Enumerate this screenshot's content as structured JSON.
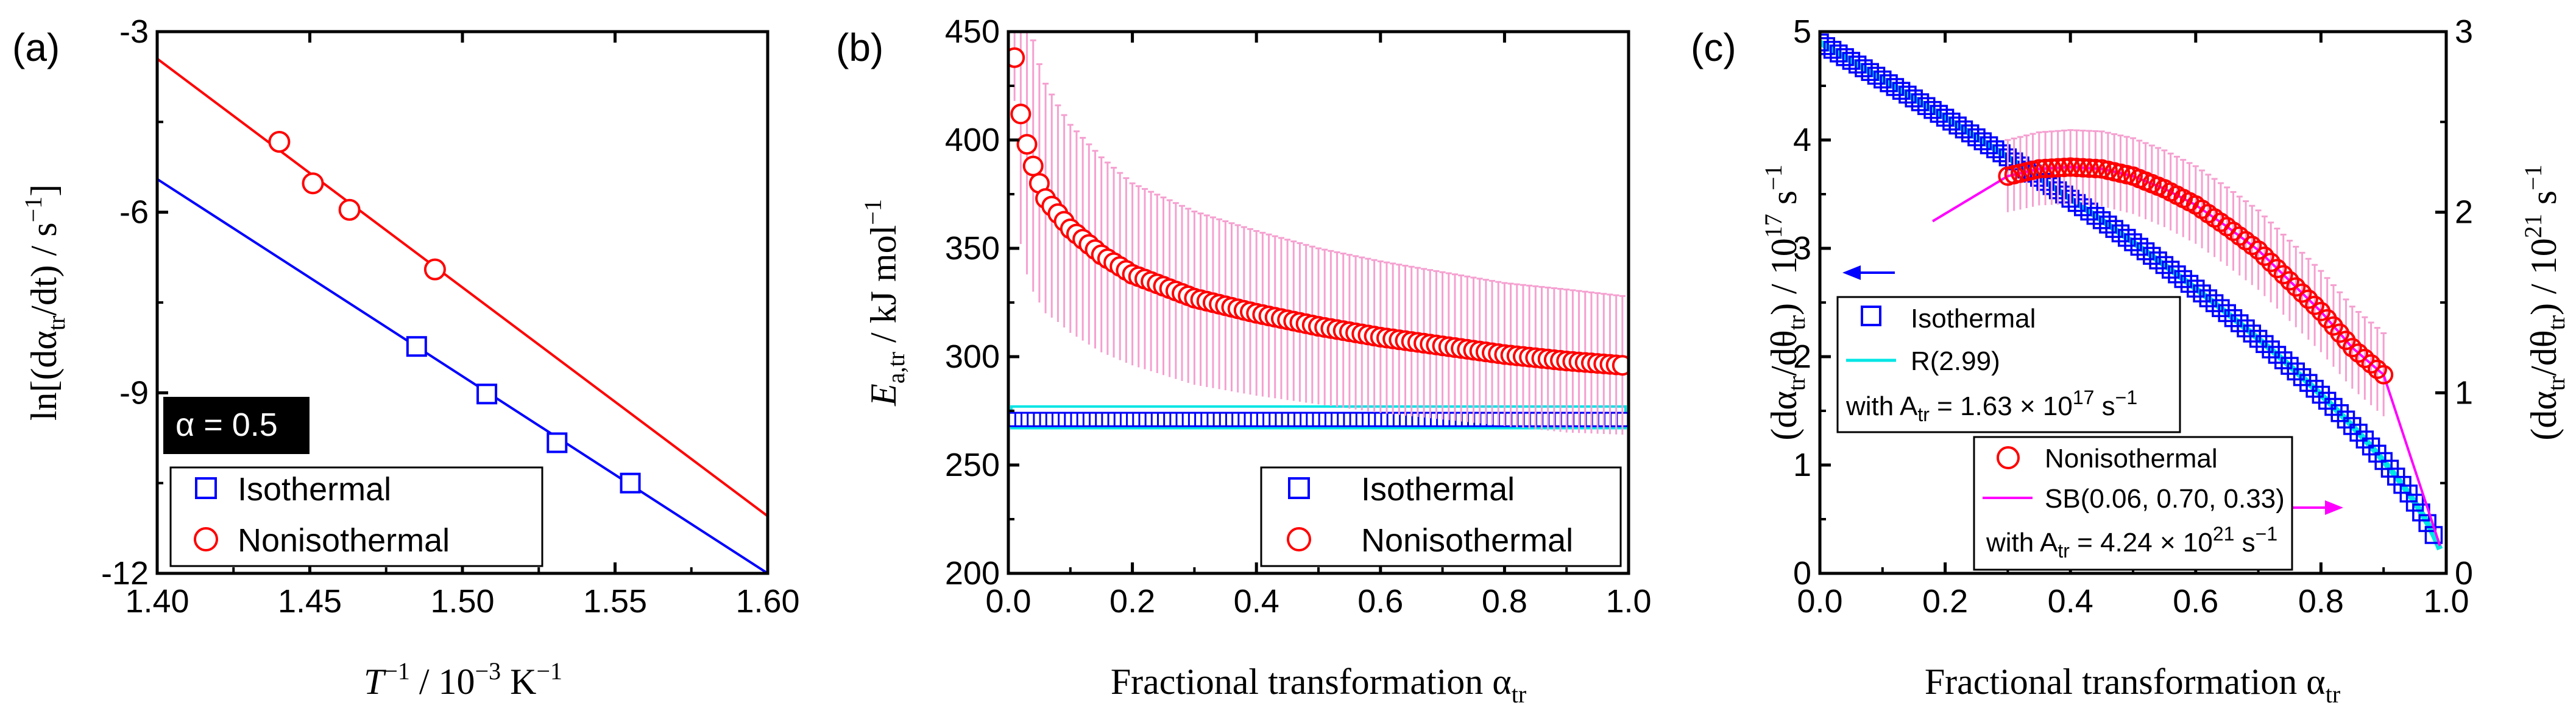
{
  "colors": {
    "iso": "#0000ff",
    "noniso": "#ff0000",
    "cyan": "#00e5e5",
    "magenta": "#ff00ff",
    "pinkbar": "#f5a0d0"
  },
  "panel_a": {
    "label": "(a)",
    "xlabel_sup": "−1",
    "xlabel_unit": " / 10",
    "xlabel_unit_sup": "−3",
    "xlabel_unit_tail": " K",
    "xlabel_unit_sup2": "−1",
    "ylabel_text": "ln[(dα",
    "ylabel_sub": "tr",
    "ylabel_mid": "/dt) / s",
    "ylabel_sup": "−1",
    "ylabel_end": "]",
    "annotation": "α = 0.5"
  },
  "panel_b": {
    "label": "(b)",
    "ylabel_main": "E",
    "ylabel_sub": "a,tr",
    "ylabel_unit": " / kJ mol",
    "ylabel_sup": "−1",
    "xlabel": "Fractional transformation α",
    "xlabel_sub": "tr"
  },
  "panel_c": {
    "label": "(c)",
    "xlabel": "Fractional transformation α",
    "xlabel_sub": "tr",
    "ylabel_left": "(dα",
    "ylabel_left_sub": "tr",
    "ylabel_left_mid": "/dθ",
    "ylabel_left_sub2": "tr",
    "ylabel_left_unit": ") / 10",
    "ylabel_left_sup": "17",
    "ylabel_left_s": " s",
    "ylabel_left_sup2": "−1",
    "ylabel_right_unit": ") / 10",
    "ylabel_right_sup": "21",
    "legend1": {
      "iso": "Isothermal",
      "fit": "R(2.99)",
      "with": "with A",
      "with_sub": "tr",
      "with_val": " = 1.63 × 10",
      "with_sup": "17",
      "with_unit": " s",
      "with_unit_sup": "−1"
    },
    "legend2": {
      "noniso": "Nonisothermal",
      "fit": "SB(0.06, 0.70, 0.33)",
      "with": "with A",
      "with_sub": "tr",
      "with_val": " = 4.24 × 10",
      "with_sup": "21",
      "with_unit": " s",
      "with_unit_sup": "−1"
    }
  },
  "legend": {
    "iso": "Isothermal",
    "noniso": "Nonisothermal"
  },
  "chart_data": [
    {
      "type": "scatter",
      "panel": "a",
      "xlim": [
        1.4,
        1.6
      ],
      "ylim": [
        -12,
        -3
      ],
      "xticks": [
        "1.40",
        "1.45",
        "1.50",
        "1.55",
        "1.60"
      ],
      "yticks": [
        "-3",
        "-6",
        "-9",
        "-12"
      ],
      "series": [
        {
          "name": "Isothermal",
          "x": [
            1.485,
            1.508,
            1.531,
            1.555
          ],
          "y": [
            -8.23,
            -9.02,
            -9.83,
            -10.5
          ],
          "fit_line": {
            "x": [
              1.4,
              1.6
            ],
            "y": [
              -5.45,
              -12.0
            ]
          }
        },
        {
          "name": "Nonisothermal",
          "x": [
            1.44,
            1.451,
            1.463,
            1.491
          ],
          "y": [
            -4.83,
            -5.52,
            -5.96,
            -6.95
          ],
          "fit_line": {
            "x": [
              1.4,
              1.6
            ],
            "y": [
              -3.45,
              -11.05
            ]
          }
        }
      ]
    },
    {
      "type": "scatter",
      "panel": "b",
      "xlim": [
        0.0,
        1.0
      ],
      "ylim": [
        200,
        450
      ],
      "xticks": [
        "0.0",
        "0.2",
        "0.4",
        "0.6",
        "0.8",
        "1.0"
      ],
      "yticks": [
        "200",
        "250",
        "300",
        "350",
        "400",
        "450"
      ],
      "series": [
        {
          "name": "Isothermal",
          "value": 271,
          "band": [
            267,
            277
          ],
          "x_start": 0.01,
          "x_end": 0.99,
          "x_step": 0.01
        },
        {
          "name": "Nonisothermal",
          "x": [
            0.01,
            0.02,
            0.03,
            0.04,
            0.05,
            0.06,
            0.08,
            0.1,
            0.15,
            0.2,
            0.3,
            0.4,
            0.5,
            0.6,
            0.7,
            0.8,
            0.9,
            0.99
          ],
          "y": [
            438,
            412,
            398,
            388,
            380,
            373,
            366,
            359,
            347,
            338,
            327,
            320,
            314,
            309,
            305,
            301,
            298,
            296
          ],
          "err": [
            20,
            60,
            60,
            58,
            55,
            53,
            50,
            48,
            45,
            42,
            40,
            38,
            36,
            35,
            34,
            33,
            33,
            32
          ]
        }
      ]
    },
    {
      "type": "scatter",
      "panel": "c",
      "xlim": [
        0.0,
        1.0
      ],
      "ylim_left": [
        0,
        5
      ],
      "ylim_right": [
        0,
        3
      ],
      "xticks": [
        "0.0",
        "0.2",
        "0.4",
        "0.6",
        "0.8",
        "1.0"
      ],
      "yticks_left": [
        "0",
        "1",
        "2",
        "3",
        "4",
        "5"
      ],
      "yticks_right": [
        "0",
        "1",
        "2",
        "3"
      ],
      "series": [
        {
          "name": "Isothermal",
          "axis": "left",
          "model": "R(2.99)",
          "A_tr": "1.63e17"
        },
        {
          "name": "Nonisothermal",
          "axis": "right",
          "model": "SB(0.06, 0.70, 0.33)",
          "A_tr": "4.24e21",
          "x": [
            0.3,
            0.35,
            0.4,
            0.45,
            0.5,
            0.55,
            0.6,
            0.65,
            0.7,
            0.75,
            0.8,
            0.85,
            0.9
          ],
          "y": [
            2.2,
            2.24,
            2.25,
            2.24,
            2.2,
            2.13,
            2.04,
            1.92,
            1.79,
            1.62,
            1.45,
            1.25,
            1.1
          ]
        }
      ]
    }
  ]
}
